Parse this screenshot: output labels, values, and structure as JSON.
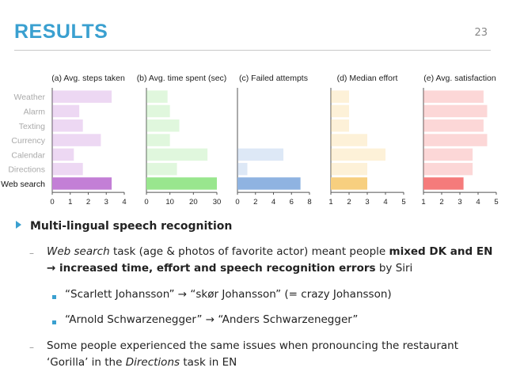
{
  "slide": {
    "title": "RESULTS",
    "number": "23"
  },
  "chart_data": {
    "type": "bar",
    "orientation": "horizontal",
    "categories": [
      "Weather",
      "Alarm",
      "Texting",
      "Currency",
      "Calendar",
      "Directions",
      "Web search"
    ],
    "highlighted_category": "Web search",
    "panels": [
      {
        "title": "(a) Avg. steps taken",
        "xlim": [
          0,
          4
        ],
        "ticks": [
          "0",
          "1",
          "2",
          "3",
          "4"
        ],
        "values": [
          3.3,
          1.5,
          1.7,
          2.7,
          1.2,
          1.7,
          3.3
        ],
        "color": "#c37fd6"
      },
      {
        "title": "(b) Avg. time spent (sec)",
        "xlim": [
          0,
          30
        ],
        "ticks": [
          "0",
          "10",
          "20",
          "30"
        ],
        "values": [
          9,
          10,
          14,
          10,
          26,
          13,
          30
        ],
        "color": "#99e68e"
      },
      {
        "title": "(c) Failed attempts",
        "xlim": [
          0,
          8
        ],
        "ticks": [
          "0",
          "2",
          "4",
          "6",
          "8"
        ],
        "values": [
          0,
          0,
          0,
          0,
          5.1,
          1.1,
          7.0
        ],
        "color": "#8fb3e1"
      },
      {
        "title": "(d) Median effort",
        "xlim": [
          1,
          5
        ],
        "ticks": [
          "1",
          "2",
          "3",
          "4",
          "5"
        ],
        "values": [
          2,
          2,
          2,
          3,
          4,
          3,
          3
        ],
        "color": "#f7cf7f"
      },
      {
        "title": "(e) Avg. satisfaction",
        "xlim": [
          1,
          5
        ],
        "ticks": [
          "1",
          "2",
          "3",
          "4",
          "5"
        ],
        "values": [
          4.3,
          4.5,
          4.3,
          4.5,
          3.7,
          3.7,
          3.2
        ],
        "color": "#f57b7b"
      }
    ]
  },
  "bullets": {
    "main": "Multi-lingual speech recognition",
    "sub1_italic": "Web search",
    "sub1_a": " task (age & photos of favorite actor) meant people ",
    "sub1_bold": "mixed DK and EN",
    "sub1_line2_bold": "→ increased time, effort and speech recognition errors",
    "sub1_line2_rest": " by Siri",
    "example1": "“Scarlett Johansson” → “skør Johansson” (= crazy Johansson)",
    "example2": "“Arnold Schwarzenegger” → “Anders Schwarzenegger”",
    "sub2_line1": "Some people experienced the same issues when pronouncing the restaurant",
    "sub2_line2_a": "‘Gorilla’ in the ",
    "sub2_line2_italic": "Directions",
    "sub2_line2_b": " task in EN",
    "dash": "–"
  }
}
